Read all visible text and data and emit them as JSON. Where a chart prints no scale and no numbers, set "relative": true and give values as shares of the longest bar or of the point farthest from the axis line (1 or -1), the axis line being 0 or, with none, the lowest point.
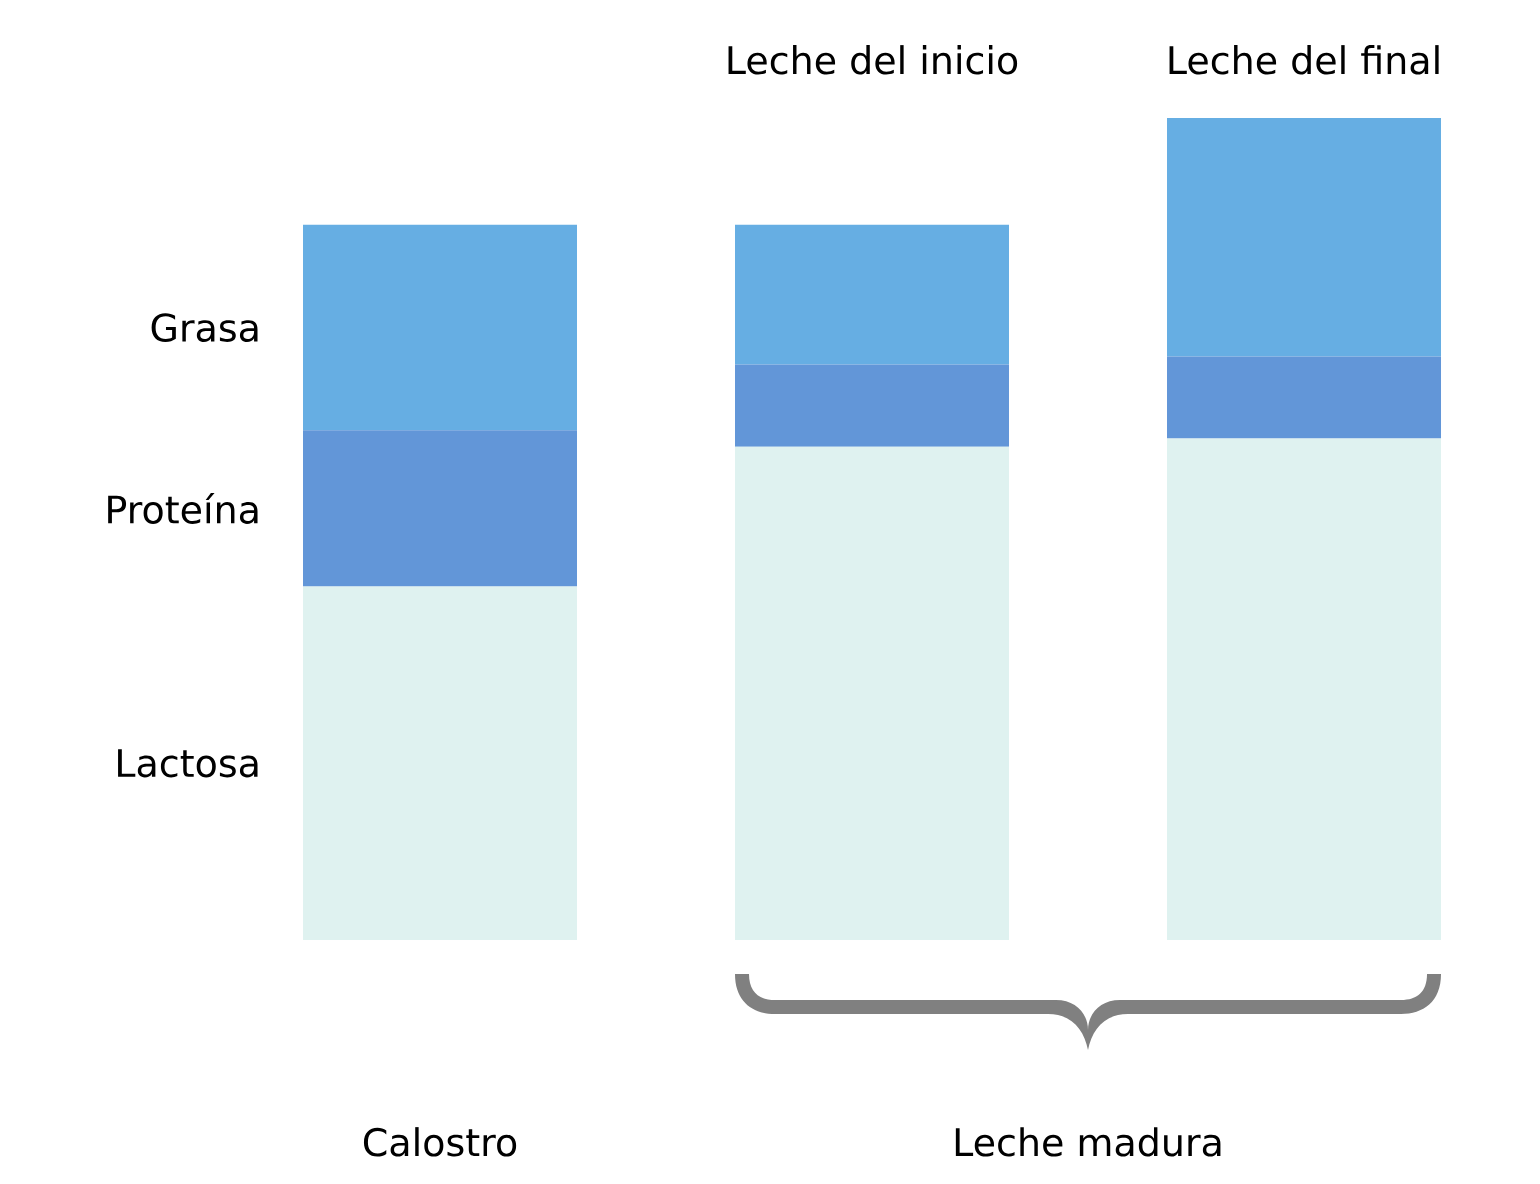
{
  "chart_data": {
    "type": "bar",
    "stacked": true,
    "relative": true,
    "categories": [
      null,
      "Leche del inicio",
      "Leche del final"
    ],
    "series": [
      {
        "name": "Lactosa",
        "color": "#dff2f0",
        "values": [
          0.43,
          0.6,
          0.61
        ]
      },
      {
        "name": "Proteína",
        "color": "#6296d8",
        "values": [
          0.19,
          0.1,
          0.1
        ]
      },
      {
        "name": "Grasa",
        "color": "#66aee3",
        "values": [
          0.25,
          0.17,
          0.29
        ]
      }
    ],
    "annotations": [
      "Calostro",
      "Leche madura"
    ]
  }
}
